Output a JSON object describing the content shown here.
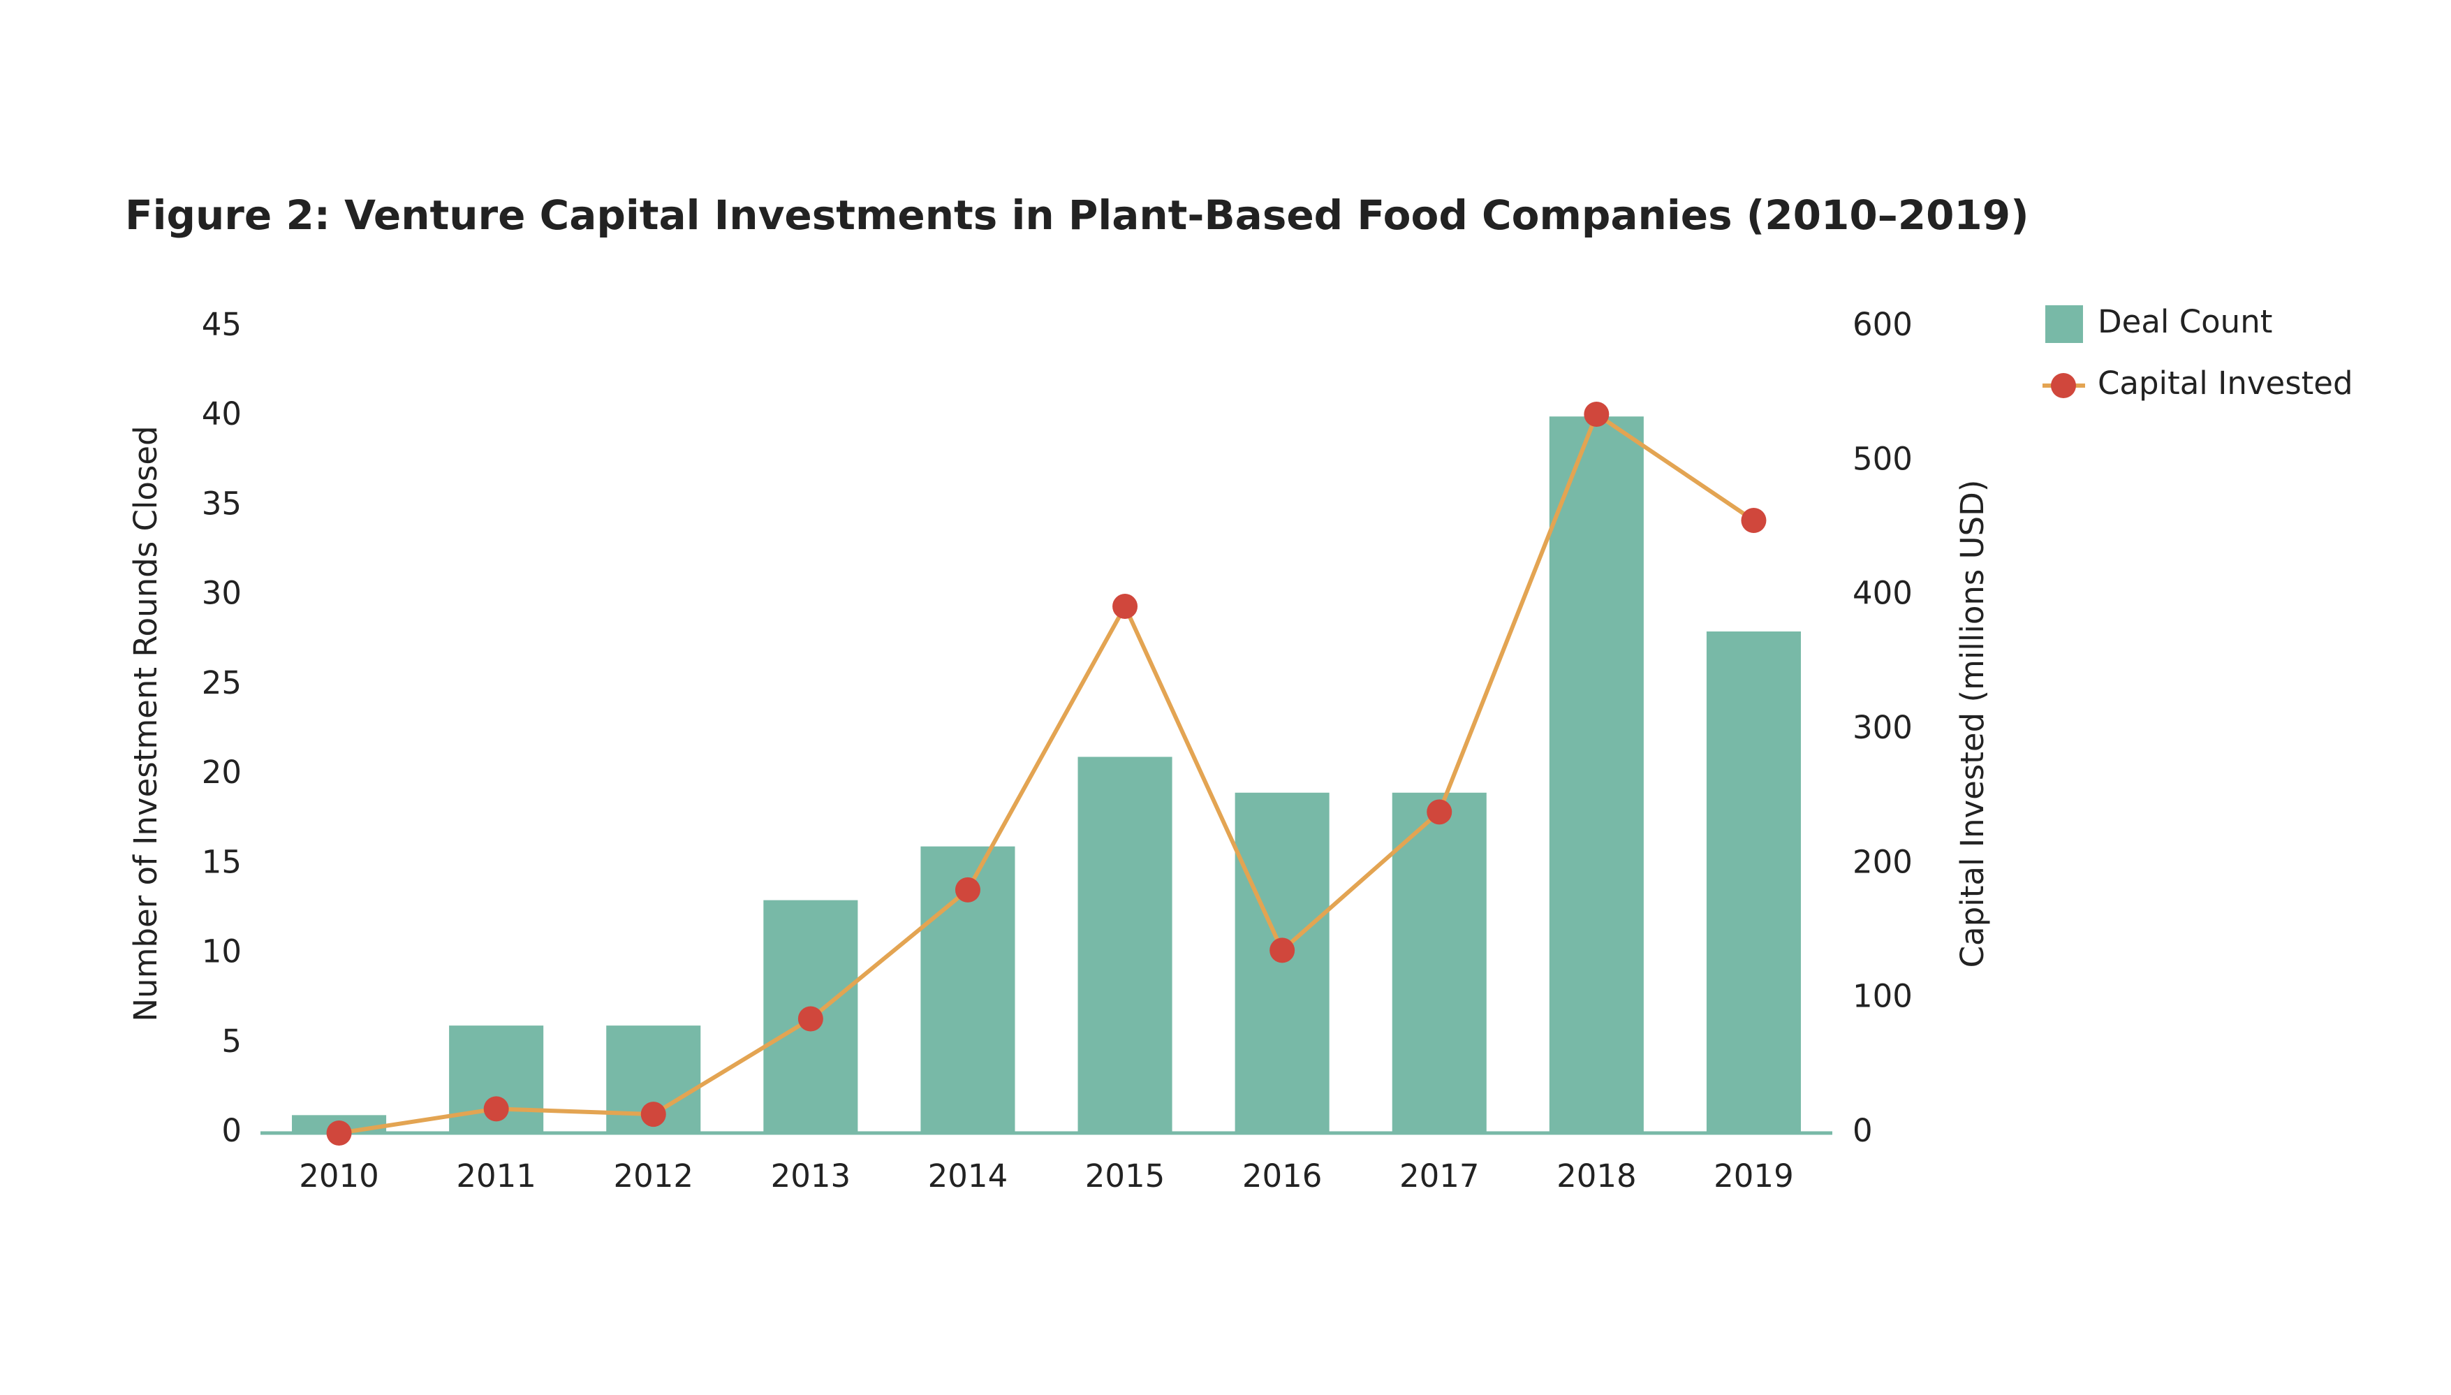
{
  "chart_data": {
    "type": "bar",
    "title": "Figure 2: Venture Capital Investments in Plant-Based Food Companies (2010–2019)",
    "categories": [
      "2010",
      "2011",
      "2012",
      "2013",
      "2014",
      "2015",
      "2016",
      "2017",
      "2018",
      "2019"
    ],
    "series": [
      {
        "name": "Deal Count",
        "type": "bar",
        "color": "#78b9a7",
        "values": [
          1,
          6,
          6,
          13,
          16,
          21,
          19,
          19,
          40,
          28
        ]
      },
      {
        "name": "Capital Invested",
        "type": "line",
        "axis": "y2",
        "color": "#e3a452",
        "marker_color": "#d0473c",
        "values": [
          0,
          18,
          14,
          85,
          181,
          392,
          136,
          239,
          535,
          456
        ]
      }
    ],
    "y_label": "Number of Investment Rounds Closed",
    "y2_label": "Capital Invested (millions USD)",
    "ylim": [
      0,
      45
    ],
    "yticks": [
      0,
      5,
      10,
      15,
      20,
      25,
      30,
      35,
      40,
      45
    ],
    "y2lim": [
      0,
      600
    ],
    "y2ticks": [
      0,
      100,
      200,
      300,
      400,
      500,
      600
    ],
    "grid": false,
    "legend": "upper right"
  }
}
